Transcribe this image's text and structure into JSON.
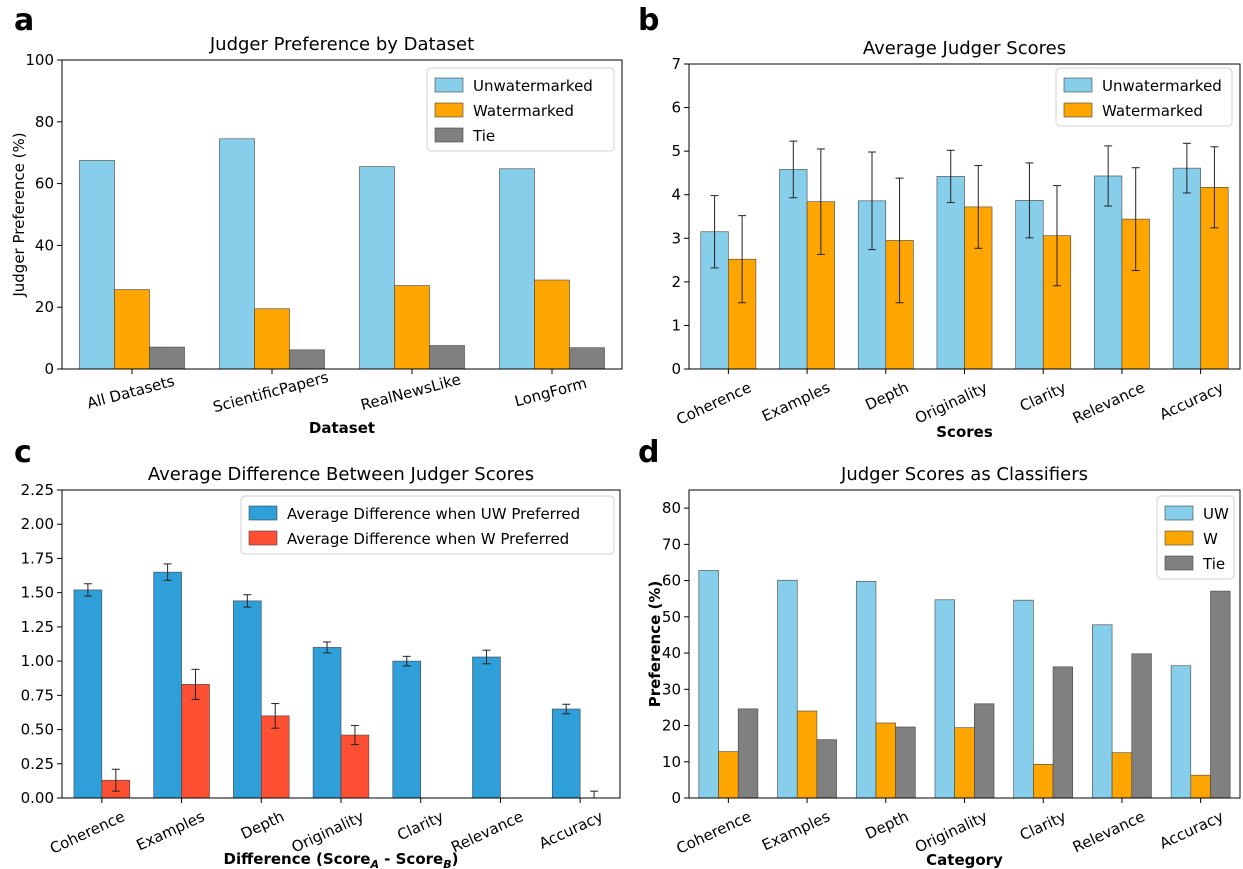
{
  "chart_data": [
    {
      "id": "a",
      "panel_label": "a",
      "type": "bar",
      "title": "Judger Preference by Dataset",
      "xlabel": "Dataset",
      "ylabel": "Judger Preference (%)",
      "ylim": [
        0,
        100
      ],
      "yticks": [
        0,
        20,
        40,
        60,
        80,
        100
      ],
      "categories": [
        "All Datasets",
        "ScientificPapers",
        "RealNewsLike",
        "LongForm"
      ],
      "series": [
        {
          "name": "Unwatermarked",
          "color": "#87ceeb",
          "values": [
            67.5,
            74.5,
            65.5,
            64.8
          ]
        },
        {
          "name": "Watermarked",
          "color": "#ffa500",
          "values": [
            25.7,
            19.5,
            27.0,
            28.8
          ]
        },
        {
          "name": "Tie",
          "color": "#808080",
          "values": [
            7.1,
            6.2,
            7.6,
            6.9
          ]
        }
      ],
      "legend": "top-right",
      "grid": false
    },
    {
      "id": "b",
      "panel_label": "b",
      "type": "bar",
      "title": "Average Judger Scores",
      "xlabel": "Scores",
      "ylabel": "",
      "ylim": [
        0,
        7
      ],
      "yticks": [
        0,
        1,
        2,
        3,
        4,
        5,
        6,
        7
      ],
      "categories": [
        "Coherence",
        "Examples",
        "Depth",
        "Originality",
        "Clarity",
        "Relevance",
        "Accuracy"
      ],
      "series": [
        {
          "name": "Unwatermarked",
          "color": "#87ceeb",
          "values": [
            3.15,
            4.58,
            3.86,
            4.42,
            3.87,
            4.43,
            4.61
          ],
          "errors": [
            0.83,
            0.65,
            1.12,
            0.6,
            0.86,
            0.69,
            0.57
          ]
        },
        {
          "name": "Watermarked",
          "color": "#ffa500",
          "values": [
            2.52,
            3.84,
            2.95,
            3.72,
            3.06,
            3.44,
            4.17
          ],
          "errors": [
            1.0,
            1.21,
            1.43,
            0.95,
            1.15,
            1.18,
            0.93
          ]
        }
      ],
      "legend": "top-right",
      "grid": false
    },
    {
      "id": "c",
      "panel_label": "c",
      "type": "bar",
      "title": "Average Difference Between Judger Scores",
      "xlabel_main": "Difference (Score",
      "xlabel_sub_a": "A",
      "xlabel_mid": " - Score",
      "xlabel_sub_b": "B",
      "xlabel_end": ")",
      "ylabel": "",
      "ylim": [
        0,
        2.25
      ],
      "yticks": [
        "0.00",
        "0.25",
        "0.50",
        "0.75",
        "1.00",
        "1.25",
        "1.50",
        "1.75",
        "2.00",
        "2.25"
      ],
      "categories": [
        "Coherence",
        "Examples",
        "Depth",
        "Originality",
        "Clarity",
        "Relevance",
        "Accuracy"
      ],
      "series": [
        {
          "name": "Average Difference when UW Preferred",
          "color": "#2e9fd8",
          "values": [
            1.52,
            1.65,
            1.44,
            1.1,
            1.0,
            1.03,
            0.65
          ],
          "errors": [
            0.045,
            0.06,
            0.045,
            0.04,
            0.035,
            0.05,
            0.035
          ]
        },
        {
          "name": "Average Difference when W Preferred",
          "color": "#ff4f32",
          "values": [
            0.13,
            0.83,
            0.6,
            0.46,
            null,
            null,
            0.0
          ],
          "errors": [
            0.08,
            0.11,
            0.09,
            0.07,
            null,
            null,
            0.05
          ]
        }
      ],
      "legend": "top-right",
      "grid": false
    },
    {
      "id": "d",
      "panel_label": "d",
      "type": "bar",
      "title": "Judger Scores as Classifiers",
      "xlabel": "Category",
      "ylabel": "Preference (%)",
      "ylim": [
        0,
        85
      ],
      "yticks": [
        0,
        10,
        20,
        30,
        40,
        50,
        60,
        70,
        80
      ],
      "categories": [
        "Coherence",
        "Examples",
        "Depth",
        "Originality",
        "Clarity",
        "Relevance",
        "Accuracy"
      ],
      "series": [
        {
          "name": "UW",
          "color": "#87ceeb",
          "values": [
            62.8,
            60.1,
            59.8,
            54.7,
            54.6,
            47.8,
            36.5
          ]
        },
        {
          "name": "W",
          "color": "#ffa500",
          "values": [
            12.8,
            24.0,
            20.7,
            19.4,
            9.3,
            12.5,
            6.3
          ]
        },
        {
          "name": "Tie",
          "color": "#808080",
          "values": [
            24.6,
            16.1,
            19.6,
            26.0,
            36.2,
            39.8,
            57.1
          ]
        }
      ],
      "legend": "top-right",
      "grid": false
    }
  ]
}
